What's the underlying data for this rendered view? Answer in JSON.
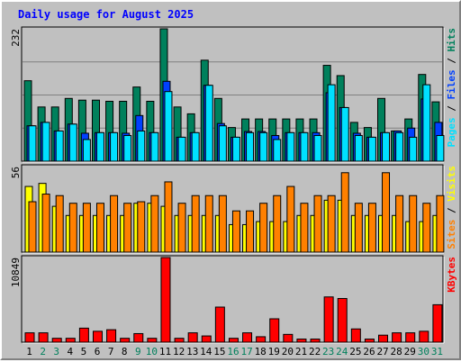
{
  "colors": {
    "title": "#0000ff",
    "pages": "#00e0ff",
    "files": "#0040ff",
    "hits": "#00805c",
    "sites": "#ff8000",
    "visits": "#ffff00",
    "kbytes": "#ff0000",
    "weekend_label": "#00805c",
    "weekday_label": "#000000",
    "grid": "#808080"
  },
  "chart_data": {
    "type": "bar",
    "title": "Daily usage for August 2025",
    "categories": [
      "1",
      "2",
      "3",
      "4",
      "5",
      "6",
      "7",
      "8",
      "9",
      "10",
      "11",
      "12",
      "13",
      "14",
      "15",
      "16",
      "17",
      "18",
      "19",
      "20",
      "21",
      "22",
      "23",
      "24",
      "25",
      "26",
      "27",
      "28",
      "29",
      "30",
      "31"
    ],
    "weekend_days": [
      "2",
      "3",
      "9",
      "10",
      "16",
      "17",
      "23",
      "24",
      "30",
      "31"
    ],
    "panels": [
      {
        "name": "hits-files-pages",
        "y_max_label": "232",
        "ylim": [
          0,
          232
        ],
        "legend": [
          {
            "text": "Pages",
            "color": "#00e0ff"
          },
          {
            "text": " / ",
            "color": "#000000"
          },
          {
            "text": "Files",
            "color": "#0040ff"
          },
          {
            "text": " / ",
            "color": "#000000"
          },
          {
            "text": "Hits",
            "color": "#00805c"
          }
        ],
        "series": [
          {
            "name": "Hits",
            "values": [
              141,
              95,
              95,
              110,
              107,
              107,
              105,
              105,
              130,
              105,
              232,
              95,
              83,
              177,
              110,
              59,
              74,
              74,
              74,
              74,
              74,
              74,
              168,
              150,
              68,
              59,
              110,
              53,
              74,
              152,
              104
            ]
          },
          {
            "name": "Files",
            "values": [
              62,
              68,
              53,
              65,
              49,
              50,
              50,
              49,
              80,
              50,
              140,
              42,
              50,
              133,
              66,
              42,
              52,
              52,
              45,
              50,
              50,
              50,
              120,
              94,
              49,
              42,
              50,
              53,
              58,
              109,
              68
            ]
          },
          {
            "name": "Pages",
            "values": [
              62,
              68,
              53,
              65,
              38,
              50,
              50,
              45,
              53,
              50,
              122,
              42,
              50,
              133,
              62,
              42,
              50,
              50,
              38,
              50,
              50,
              45,
              134,
              94,
              45,
              42,
              50,
              50,
              42,
              134,
              45
            ]
          }
        ]
      },
      {
        "name": "visits-sites",
        "y_max_label": "56",
        "ylim": [
          0,
          56
        ],
        "legend": [
          {
            "text": "Sites",
            "color": "#ff8000"
          },
          {
            "text": " / ",
            "color": "#000000"
          },
          {
            "text": "Visits",
            "color": "#ffff00"
          }
        ],
        "series": [
          {
            "name": "Visits",
            "values": [
              43,
              45,
              30,
              24,
              24,
              24,
              24,
              24,
              32,
              32,
              30,
              24,
              24,
              24,
              24,
              18,
              18,
              20,
              20,
              20,
              24,
              24,
              34,
              34,
              24,
              24,
              24,
              24,
              20,
              20,
              24
            ]
          },
          {
            "name": "Sites",
            "values": [
              33,
              38,
              37,
              32,
              32,
              32,
              37,
              32,
              33,
              37,
              46,
              32,
              37,
              37,
              37,
              27,
              27,
              32,
              37,
              43,
              32,
              37,
              37,
              52,
              32,
              32,
              52,
              37,
              37,
              32,
              37
            ]
          }
        ]
      },
      {
        "name": "kbytes",
        "y_max_label": "10849",
        "ylim": [
          0,
          10849
        ],
        "legend": [
          {
            "text": "KBytes",
            "color": "#ff0000"
          }
        ],
        "series": [
          {
            "name": "KBytes",
            "values": [
              1200,
              1200,
              500,
              500,
              1800,
              1400,
              1600,
              500,
              1100,
              500,
              10849,
              500,
              1200,
              800,
              4500,
              500,
              1200,
              700,
              3000,
              1000,
              400,
              400,
              5800,
              5600,
              1700,
              400,
              900,
              1200,
              1200,
              1400,
              4800
            ]
          }
        ]
      }
    ]
  }
}
